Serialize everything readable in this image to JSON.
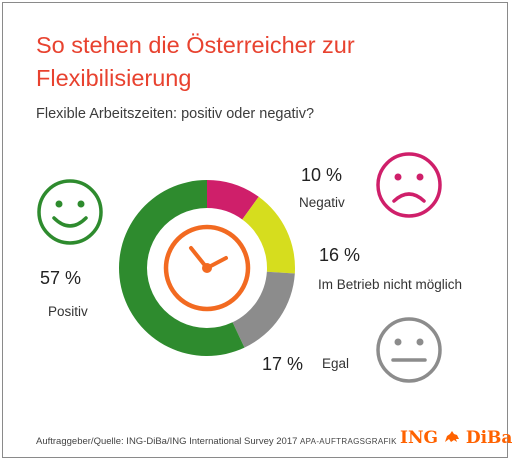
{
  "title": "So stehen die Österreicher zur Flexibilisierung",
  "subtitle": "Flexible Arbeitszeiten: positiv oder negativ?",
  "chart_data": {
    "type": "pie",
    "subtitle": "Flexible Arbeitszeiten: positiv oder negativ?",
    "slices": [
      {
        "label": "Positiv",
        "value": 57,
        "display": "57 %",
        "color": "#2e8b2e"
      },
      {
        "label": "Negativ",
        "value": 10,
        "display": "10 %",
        "color": "#cf1f6a"
      },
      {
        "label": "Im Betrieb nicht möglich",
        "value": 16,
        "display": "16 %",
        "color": "#d6dd1e"
      },
      {
        "label": "Egal",
        "value": 17,
        "display": "17 %",
        "color": "#8c8c8c"
      }
    ],
    "unit": "%"
  },
  "icons": {
    "center": "clock-icon",
    "positive": "happy-face-icon",
    "negative": "sad-face-icon",
    "neutral": "neutral-face-icon"
  },
  "colors": {
    "title": "#e8422f",
    "clock": "#f26a21",
    "positive_face": "#2e8b2e",
    "negative_face": "#cf1f6a",
    "neutral_face": "#8c8c8c"
  },
  "footer": {
    "source": "Auftraggeber/Quelle: ING-DiBa/ING International Survey 2017",
    "credit": "APA-AUFTRAGSGRAFIK",
    "logo_ing": "ING",
    "logo_diba": "DiBa"
  }
}
